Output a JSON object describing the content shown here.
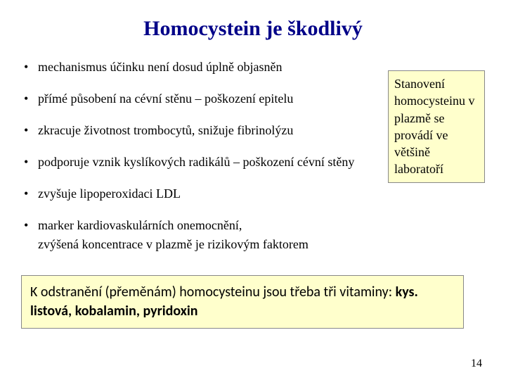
{
  "title": "Homocystein je škodlivý",
  "bullets": {
    "b1": "mechanismus účinku není dosud úplně objasněn",
    "b2": "přímé působení na cévní stěnu – poškození epitelu",
    "b3": "zkracuje životnost trombocytů, snižuje fibrinolýzu",
    "b4": "podporuje vznik kyslíkových radikálů – poškození cévní stěny",
    "b5": "zvyšuje lipoperoxidaci LDL",
    "b6": "marker kardiovaskulárních onemocnění,",
    "b6_sub": "zvýšená koncentrace v plazmě je rizikovým faktorem"
  },
  "sidebox": "Stanovení homocysteinu v plazmě se provádí ve většině laboratoří",
  "summary": {
    "prefix": "K odstranění (přeměnám) homocysteinu jsou třeba tři vitaminy: ",
    "bold": "kys. listová, kobalamin, pyridoxin"
  },
  "page_number": "14",
  "colors": {
    "title_color": "#000088",
    "box_bg": "#ffffcc",
    "box_border": "#888888",
    "text": "#000000",
    "background": "#ffffff"
  }
}
